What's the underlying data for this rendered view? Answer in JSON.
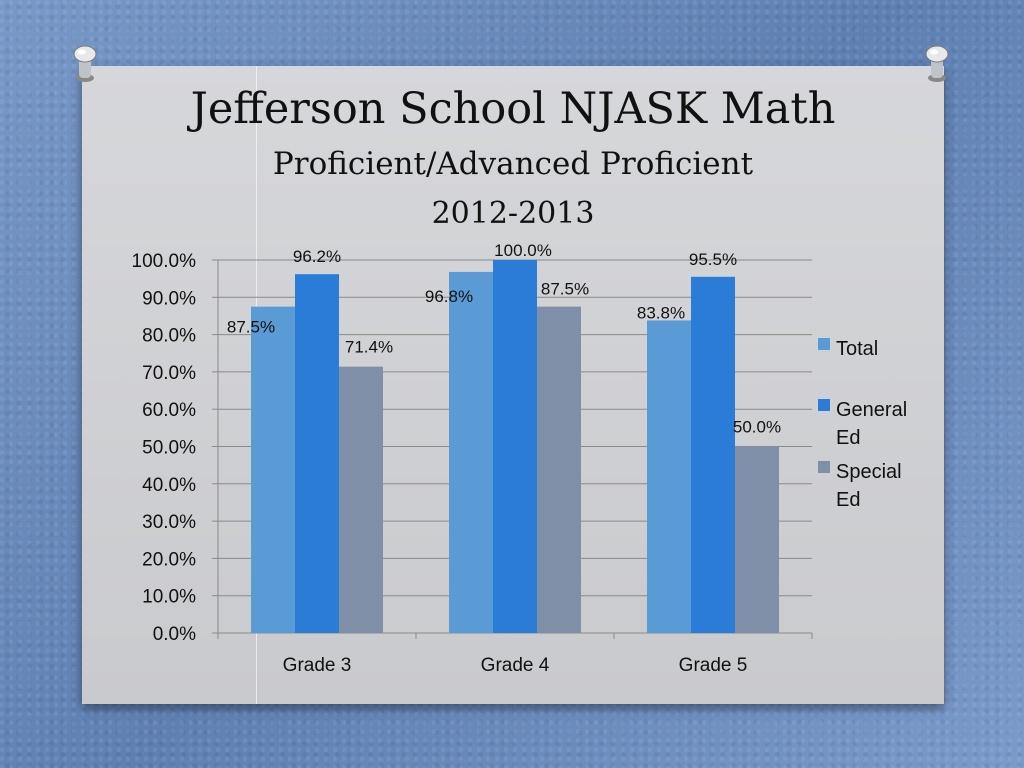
{
  "chart_data": {
    "type": "bar",
    "title": "Jefferson School NJASK Math",
    "subtitle": "Proficient/Advanced Proficient",
    "subtitle2": "2012-2013",
    "categories": [
      "Grade 3",
      "Grade 4",
      "Grade 5"
    ],
    "series": [
      {
        "name": "Total",
        "values": [
          87.5,
          96.8,
          83.8
        ],
        "labels": [
          "87.5%",
          "96.8%",
          "83.8%"
        ],
        "color": "#5b9bd5"
      },
      {
        "name": "General Ed",
        "values": [
          96.2,
          100.0,
          95.5
        ],
        "labels": [
          "96.2%",
          "100.0%",
          "95.5%"
        ],
        "color": "#2b7cd6"
      },
      {
        "name": "Special Ed",
        "values": [
          71.4,
          87.5,
          50.0
        ],
        "labels": [
          "71.4%",
          "87.5%",
          "50.0%"
        ],
        "color": "#7f8fa8"
      }
    ],
    "ylim": [
      0,
      100
    ],
    "yticks": [
      "0.0%",
      "10.0%",
      "20.0%",
      "30.0%",
      "40.0%",
      "50.0%",
      "60.0%",
      "70.0%",
      "80.0%",
      "90.0%",
      "100.0%"
    ],
    "grid": true,
    "legend": "right",
    "xlabel": "",
    "ylabel": ""
  }
}
